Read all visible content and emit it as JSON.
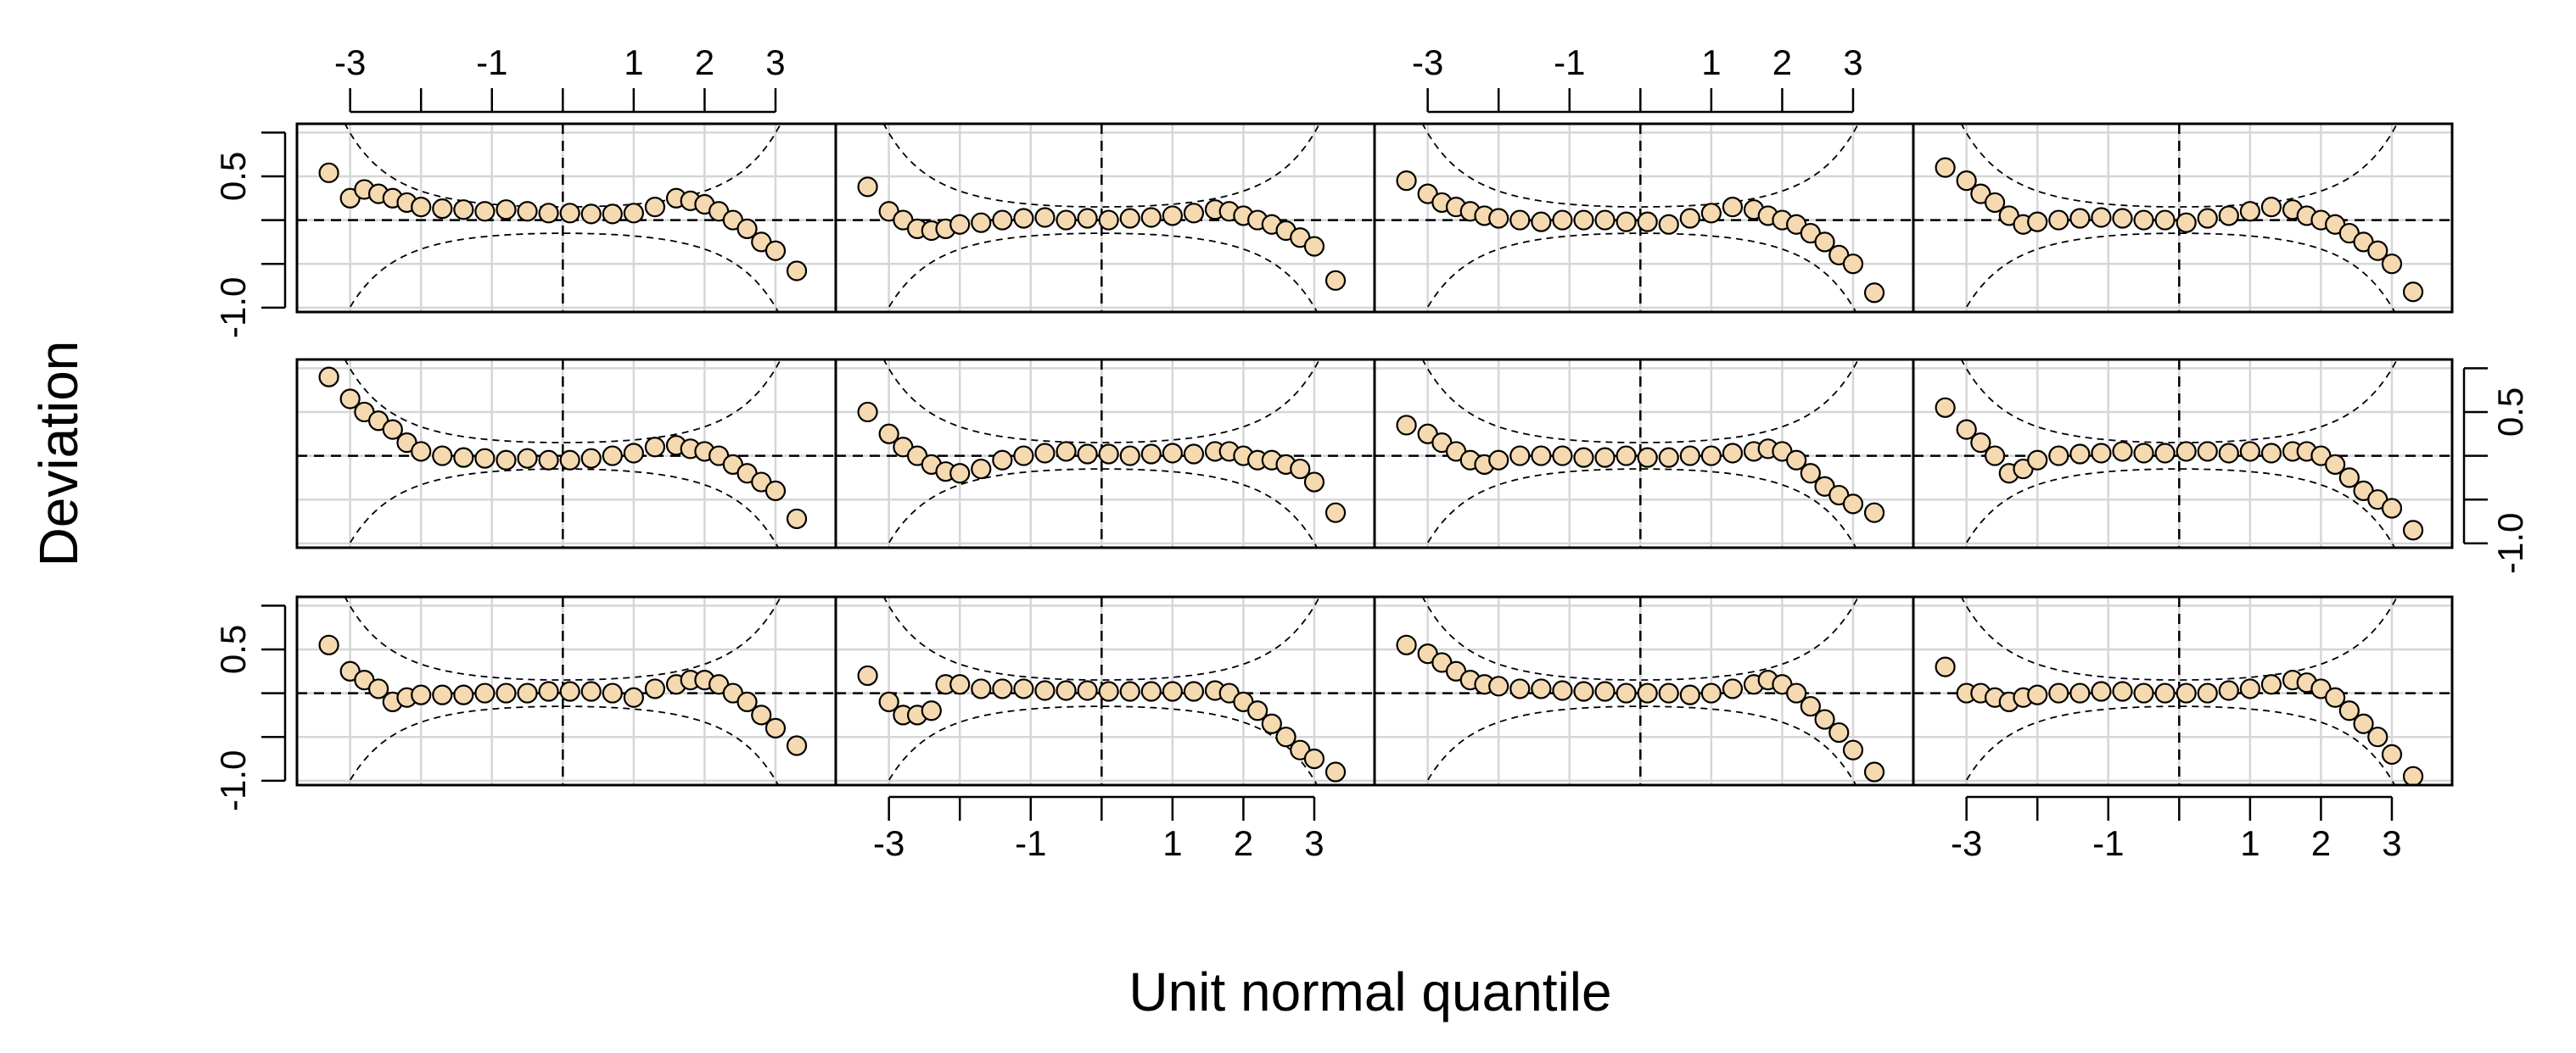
{
  "axis_titles": {
    "x": "Unit normal quantile",
    "y": "Deviation"
  },
  "reference_lines": {
    "x": 0,
    "y": 0
  },
  "chart_data": [
    {
      "type": "scatter",
      "color": "#f5d9b0",
      "xaxis": "top",
      "yaxis": "left",
      "xlim": [
        -3.75,
        3.85
      ],
      "ylim": [
        -1.05,
        1.1
      ],
      "xticks": [
        -3,
        -1,
        1,
        2,
        3
      ],
      "xticks_minor": [
        -2,
        0
      ],
      "yticks": [
        0.5,
        {
          "value": -1,
          "label": "-1.0"
        }
      ],
      "yticks_minor": [
        1,
        0,
        -0.5
      ],
      "x": [
        -3.3,
        -3.0,
        -2.8,
        -2.6,
        -2.4,
        -2.2,
        -2.0,
        -1.7,
        -1.4,
        -1.1,
        -0.8,
        -0.5,
        -0.2,
        0.1,
        0.4,
        0.7,
        1.0,
        1.3,
        1.6,
        1.8,
        2.0,
        2.2,
        2.4,
        2.6,
        2.8,
        3.0,
        3.3
      ],
      "y": [
        0.54,
        0.25,
        0.35,
        0.3,
        0.25,
        0.2,
        0.15,
        0.13,
        0.12,
        0.1,
        0.12,
        0.1,
        0.08,
        0.08,
        0.07,
        0.07,
        0.08,
        0.15,
        0.25,
        0.22,
        0.18,
        0.1,
        0.0,
        -0.1,
        -0.25,
        -0.35,
        -0.58
      ]
    },
    {
      "type": "scatter",
      "color": "#f5d9b0",
      "xlim": [
        -3.75,
        3.85
      ],
      "ylim": [
        -1.05,
        1.1
      ],
      "xticks": [
        -3,
        -1,
        1,
        2,
        3
      ],
      "xticks_minor": [
        -2,
        0
      ],
      "yticks": [
        0.5,
        {
          "value": -1,
          "label": "-1.0"
        }
      ],
      "yticks_minor": [
        1,
        0,
        -0.5
      ],
      "x": [
        -3.3,
        -3.0,
        -2.8,
        -2.6,
        -2.4,
        -2.2,
        -2.0,
        -1.7,
        -1.4,
        -1.1,
        -0.8,
        -0.5,
        -0.2,
        0.1,
        0.4,
        0.7,
        1.0,
        1.3,
        1.6,
        1.8,
        2.0,
        2.2,
        2.4,
        2.6,
        2.8,
        3.0,
        3.3
      ],
      "y": [
        0.38,
        0.1,
        0.0,
        -0.1,
        -0.12,
        -0.1,
        -0.05,
        -0.03,
        0.0,
        0.02,
        0.03,
        0.0,
        0.02,
        0.0,
        0.02,
        0.03,
        0.05,
        0.08,
        0.12,
        0.1,
        0.05,
        0.0,
        -0.05,
        -0.12,
        -0.2,
        -0.3,
        -0.69
      ]
    },
    {
      "type": "scatter",
      "color": "#f5d9b0",
      "xaxis": "top",
      "xlim": [
        -3.75,
        3.85
      ],
      "ylim": [
        -1.05,
        1.1
      ],
      "xticks": [
        -3,
        -1,
        1,
        2,
        3
      ],
      "xticks_minor": [
        -2,
        0
      ],
      "yticks": [
        0.5,
        {
          "value": -1,
          "label": "-1.0"
        }
      ],
      "yticks_minor": [
        1,
        0,
        -0.5
      ],
      "x": [
        -3.3,
        -3.0,
        -2.8,
        -2.6,
        -2.4,
        -2.2,
        -2.0,
        -1.7,
        -1.4,
        -1.1,
        -0.8,
        -0.5,
        -0.2,
        0.1,
        0.4,
        0.7,
        1.0,
        1.3,
        1.6,
        1.8,
        2.0,
        2.2,
        2.4,
        2.6,
        2.8,
        3.0,
        3.3
      ],
      "y": [
        0.45,
        0.3,
        0.2,
        0.15,
        0.1,
        0.05,
        0.02,
        0.0,
        -0.02,
        0.0,
        0.0,
        0.0,
        -0.02,
        -0.02,
        -0.05,
        0.02,
        0.08,
        0.15,
        0.12,
        0.05,
        0.0,
        -0.05,
        -0.15,
        -0.25,
        -0.4,
        -0.5,
        -0.83
      ]
    },
    {
      "type": "scatter",
      "color": "#f5d9b0",
      "xlim": [
        -3.75,
        3.85
      ],
      "ylim": [
        -1.05,
        1.1
      ],
      "xticks": [
        -3,
        -1,
        1,
        2,
        3
      ],
      "xticks_minor": [
        -2,
        0
      ],
      "yticks": [
        0.5,
        {
          "value": -1,
          "label": "-1.0"
        }
      ],
      "yticks_minor": [
        1,
        0,
        -0.5
      ],
      "x": [
        -3.3,
        -3.0,
        -2.8,
        -2.6,
        -2.4,
        -2.2,
        -2.0,
        -1.7,
        -1.4,
        -1.1,
        -0.8,
        -0.5,
        -0.2,
        0.1,
        0.4,
        0.7,
        1.0,
        1.3,
        1.6,
        1.8,
        2.0,
        2.2,
        2.4,
        2.6,
        2.8,
        3.0,
        3.3
      ],
      "y": [
        0.6,
        0.45,
        0.3,
        0.2,
        0.05,
        -0.05,
        -0.02,
        0.0,
        0.02,
        0.03,
        0.02,
        0.0,
        0.0,
        -0.03,
        0.02,
        0.05,
        0.1,
        0.15,
        0.12,
        0.05,
        0.0,
        -0.05,
        -0.15,
        -0.25,
        -0.35,
        -0.5,
        -0.82
      ]
    },
    {
      "type": "scatter",
      "color": "#f5d9b0",
      "xlim": [
        -3.75,
        3.85
      ],
      "ylim": [
        -1.05,
        1.1
      ],
      "xticks": [
        -3,
        -1,
        1,
        2,
        3
      ],
      "xticks_minor": [
        -2,
        0
      ],
      "yticks": [
        0.5,
        {
          "value": -1,
          "label": "-1.0"
        }
      ],
      "yticks_minor": [
        1,
        0,
        -0.5
      ],
      "x": [
        -3.3,
        -3.0,
        -2.8,
        -2.6,
        -2.4,
        -2.2,
        -2.0,
        -1.7,
        -1.4,
        -1.1,
        -0.8,
        -0.5,
        -0.2,
        0.1,
        0.4,
        0.7,
        1.0,
        1.3,
        1.6,
        1.8,
        2.0,
        2.2,
        2.4,
        2.6,
        2.8,
        3.0,
        3.3
      ],
      "y": [
        0.9,
        0.65,
        0.5,
        0.4,
        0.3,
        0.15,
        0.05,
        0.0,
        -0.02,
        -0.03,
        -0.05,
        -0.03,
        -0.05,
        -0.05,
        -0.03,
        0.0,
        0.03,
        0.1,
        0.12,
        0.08,
        0.05,
        0.0,
        -0.1,
        -0.2,
        -0.3,
        -0.4,
        -0.72
      ]
    },
    {
      "type": "scatter",
      "color": "#f5d9b0",
      "xlim": [
        -3.75,
        3.85
      ],
      "ylim": [
        -1.05,
        1.1
      ],
      "xticks": [
        -3,
        -1,
        1,
        2,
        3
      ],
      "xticks_minor": [
        -2,
        0
      ],
      "yticks": [
        0.5,
        {
          "value": -1,
          "label": "-1.0"
        }
      ],
      "yticks_minor": [
        1,
        0,
        -0.5
      ],
      "x": [
        -3.3,
        -3.0,
        -2.8,
        -2.6,
        -2.4,
        -2.2,
        -2.0,
        -1.7,
        -1.4,
        -1.1,
        -0.8,
        -0.5,
        -0.2,
        0.1,
        0.4,
        0.7,
        1.0,
        1.3,
        1.6,
        1.8,
        2.0,
        2.2,
        2.4,
        2.6,
        2.8,
        3.0,
        3.3
      ],
      "y": [
        0.5,
        0.25,
        0.1,
        0.0,
        -0.1,
        -0.18,
        -0.2,
        -0.15,
        -0.05,
        0.0,
        0.03,
        0.05,
        0.02,
        0.02,
        0.0,
        0.02,
        0.03,
        0.02,
        0.05,
        0.05,
        0.0,
        -0.05,
        -0.05,
        -0.1,
        -0.15,
        -0.3,
        -0.65
      ]
    },
    {
      "type": "scatter",
      "color": "#f5d9b0",
      "xlim": [
        -3.75,
        3.85
      ],
      "ylim": [
        -1.05,
        1.1
      ],
      "xticks": [
        -3,
        -1,
        1,
        2,
        3
      ],
      "xticks_minor": [
        -2,
        0
      ],
      "yticks": [
        0.5,
        {
          "value": -1,
          "label": "-1.0"
        }
      ],
      "yticks_minor": [
        1,
        0,
        -0.5
      ],
      "x": [
        -3.3,
        -3.0,
        -2.8,
        -2.6,
        -2.4,
        -2.2,
        -2.0,
        -1.7,
        -1.4,
        -1.1,
        -0.8,
        -0.5,
        -0.2,
        0.1,
        0.4,
        0.7,
        1.0,
        1.3,
        1.6,
        1.8,
        2.0,
        2.2,
        2.4,
        2.6,
        2.8,
        3.0,
        3.3
      ],
      "y": [
        0.35,
        0.25,
        0.15,
        0.05,
        -0.05,
        -0.1,
        -0.05,
        0.0,
        0.0,
        0.0,
        -0.02,
        -0.02,
        0.0,
        -0.02,
        -0.02,
        0.0,
        0.0,
        0.03,
        0.05,
        0.08,
        0.05,
        -0.05,
        -0.2,
        -0.35,
        -0.45,
        -0.55,
        -0.65
      ]
    },
    {
      "type": "scatter",
      "color": "#f5d9b0",
      "yaxis": "right",
      "xlim": [
        -3.75,
        3.85
      ],
      "ylim": [
        -1.05,
        1.1
      ],
      "xticks": [
        -3,
        -1,
        1,
        2,
        3
      ],
      "xticks_minor": [
        -2,
        0
      ],
      "yticks": [
        0.5,
        {
          "value": -1,
          "label": "-1.0"
        }
      ],
      "yticks_minor": [
        1,
        0,
        -0.5
      ],
      "x": [
        -3.3,
        -3.0,
        -2.8,
        -2.6,
        -2.4,
        -2.2,
        -2.0,
        -1.7,
        -1.4,
        -1.1,
        -0.8,
        -0.5,
        -0.2,
        0.1,
        0.4,
        0.7,
        1.0,
        1.3,
        1.6,
        1.8,
        2.0,
        2.2,
        2.4,
        2.6,
        2.8,
        3.0,
        3.3
      ],
      "y": [
        0.55,
        0.3,
        0.15,
        0.0,
        -0.2,
        -0.15,
        -0.05,
        0.0,
        0.02,
        0.03,
        0.05,
        0.03,
        0.03,
        0.05,
        0.05,
        0.03,
        0.05,
        0.03,
        0.05,
        0.05,
        0.0,
        -0.1,
        -0.25,
        -0.4,
        -0.5,
        -0.6,
        -0.85
      ]
    },
    {
      "type": "scatter",
      "color": "#f5d9b0",
      "yaxis": "left",
      "xlim": [
        -3.75,
        3.85
      ],
      "ylim": [
        -1.05,
        1.1
      ],
      "xticks": [
        -3,
        -1,
        1,
        2,
        3
      ],
      "xticks_minor": [
        -2,
        0
      ],
      "yticks": [
        0.5,
        {
          "value": -1,
          "label": "-1.0"
        }
      ],
      "yticks_minor": [
        1,
        0,
        -0.5
      ],
      "x": [
        -3.3,
        -3.0,
        -2.8,
        -2.6,
        -2.4,
        -2.2,
        -2.0,
        -1.7,
        -1.4,
        -1.1,
        -0.8,
        -0.5,
        -0.2,
        0.1,
        0.4,
        0.7,
        1.0,
        1.3,
        1.6,
        1.8,
        2.0,
        2.2,
        2.4,
        2.6,
        2.8,
        3.0,
        3.3
      ],
      "y": [
        0.55,
        0.25,
        0.15,
        0.05,
        -0.1,
        -0.05,
        -0.02,
        -0.02,
        -0.02,
        0.0,
        0.0,
        0.0,
        0.02,
        0.02,
        0.02,
        0.0,
        -0.05,
        0.05,
        0.1,
        0.15,
        0.15,
        0.1,
        0.0,
        -0.1,
        -0.25,
        -0.4,
        -0.6
      ]
    },
    {
      "type": "scatter",
      "color": "#f5d9b0",
      "xaxis": "bottom",
      "xlim": [
        -3.75,
        3.85
      ],
      "ylim": [
        -1.05,
        1.1
      ],
      "xticks": [
        -3,
        -1,
        1,
        2,
        3
      ],
      "xticks_minor": [
        -2,
        0
      ],
      "yticks": [
        0.5,
        {
          "value": -1,
          "label": "-1.0"
        }
      ],
      "yticks_minor": [
        1,
        0,
        -0.5
      ],
      "x": [
        -3.3,
        -3.0,
        -2.8,
        -2.6,
        -2.4,
        -2.2,
        -2.0,
        -1.7,
        -1.4,
        -1.1,
        -0.8,
        -0.5,
        -0.2,
        0.1,
        0.4,
        0.7,
        1.0,
        1.3,
        1.6,
        1.8,
        2.0,
        2.2,
        2.4,
        2.6,
        2.8,
        3.0,
        3.3
      ],
      "y": [
        0.2,
        -0.1,
        -0.25,
        -0.25,
        -0.2,
        0.1,
        0.1,
        0.05,
        0.05,
        0.05,
        0.03,
        0.03,
        0.03,
        0.02,
        0.02,
        0.02,
        0.02,
        0.02,
        0.03,
        0.0,
        -0.1,
        -0.2,
        -0.35,
        -0.5,
        -0.65,
        -0.75,
        -0.9
      ]
    },
    {
      "type": "scatter",
      "color": "#f5d9b0",
      "xlim": [
        -3.75,
        3.85
      ],
      "ylim": [
        -1.05,
        1.1
      ],
      "xticks": [
        -3,
        -1,
        1,
        2,
        3
      ],
      "xticks_minor": [
        -2,
        0
      ],
      "yticks": [
        0.5,
        {
          "value": -1,
          "label": "-1.0"
        }
      ],
      "yticks_minor": [
        1,
        0,
        -0.5
      ],
      "x": [
        -3.3,
        -3.0,
        -2.8,
        -2.6,
        -2.4,
        -2.2,
        -2.0,
        -1.7,
        -1.4,
        -1.1,
        -0.8,
        -0.5,
        -0.2,
        0.1,
        0.4,
        0.7,
        1.0,
        1.3,
        1.6,
        1.8,
        2.0,
        2.2,
        2.4,
        2.6,
        2.8,
        3.0,
        3.3
      ],
      "y": [
        0.55,
        0.45,
        0.35,
        0.25,
        0.15,
        0.1,
        0.08,
        0.05,
        0.05,
        0.03,
        0.02,
        0.02,
        0.0,
        0.0,
        0.0,
        -0.02,
        0.0,
        0.05,
        0.1,
        0.15,
        0.1,
        0.0,
        -0.15,
        -0.3,
        -0.45,
        -0.65,
        -0.9
      ]
    },
    {
      "type": "scatter",
      "color": "#f5d9b0",
      "xaxis": "bottom",
      "xlim": [
        -3.75,
        3.85
      ],
      "ylim": [
        -1.05,
        1.1
      ],
      "xticks": [
        -3,
        -1,
        1,
        2,
        3
      ],
      "xticks_minor": [
        -2,
        0
      ],
      "yticks": [
        0.5,
        {
          "value": -1,
          "label": "-1.0"
        }
      ],
      "yticks_minor": [
        1,
        0,
        -0.5
      ],
      "x": [
        -3.3,
        -3.0,
        -2.8,
        -2.6,
        -2.4,
        -2.2,
        -2.0,
        -1.7,
        -1.4,
        -1.1,
        -0.8,
        -0.5,
        -0.2,
        0.1,
        0.4,
        0.7,
        1.0,
        1.3,
        1.6,
        1.8,
        2.0,
        2.2,
        2.4,
        2.6,
        2.8,
        3.0,
        3.3
      ],
      "y": [
        0.3,
        0.0,
        0.0,
        -0.05,
        -0.1,
        -0.05,
        -0.02,
        0.0,
        0.0,
        0.02,
        0.02,
        0.0,
        0.0,
        0.0,
        0.0,
        0.03,
        0.05,
        0.1,
        0.15,
        0.12,
        0.05,
        -0.05,
        -0.2,
        -0.35,
        -0.5,
        -0.7,
        -0.95
      ]
    }
  ]
}
